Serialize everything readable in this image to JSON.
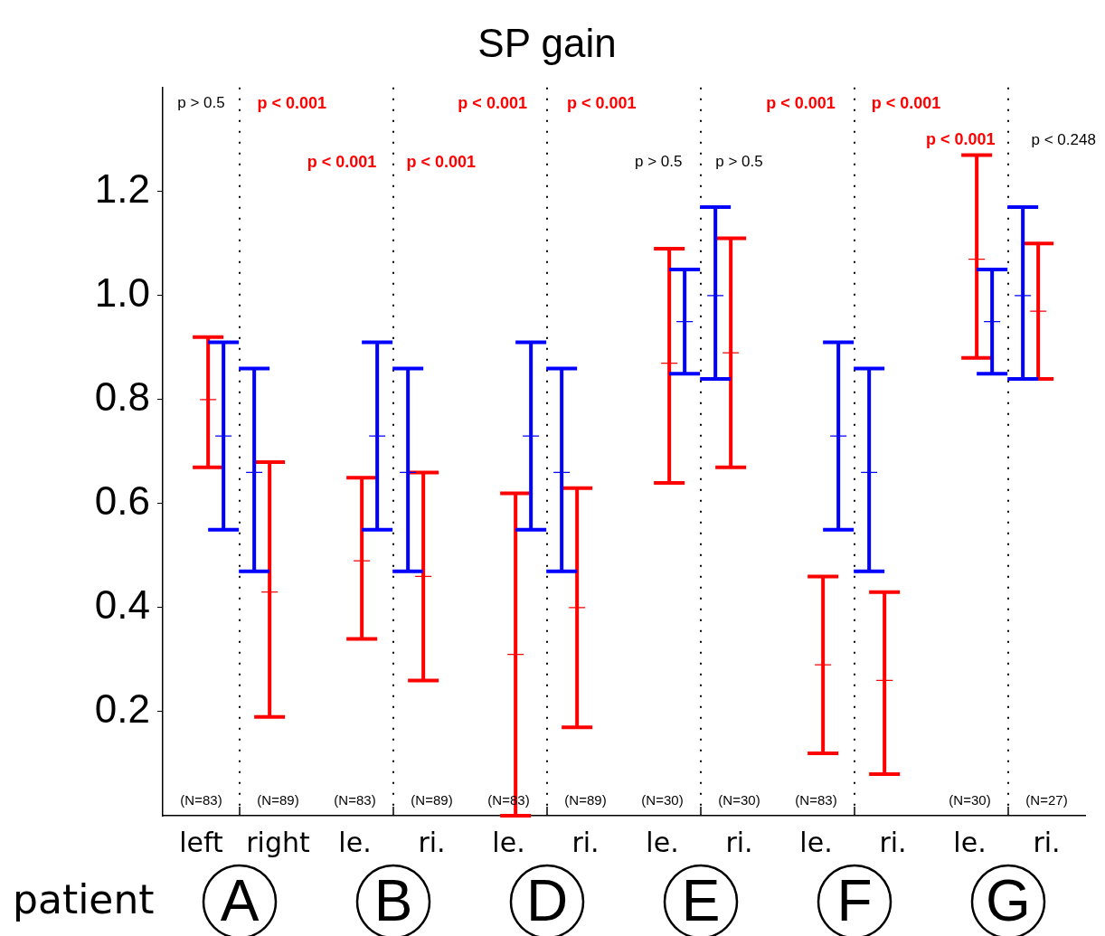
{
  "chart_data": {
    "type": "scatter",
    "title": "SP gain",
    "xlabel": "patient",
    "categories": [
      "left",
      "right",
      "le.",
      "ri.",
      "le.",
      "ri.",
      "le.",
      "ri.",
      "le.",
      "ri.",
      "le.",
      "ri."
    ],
    "series": [
      {
        "color": "#ff0000",
        "values": [
          0.8,
          0.43,
          0.49,
          0.46,
          0.31,
          0.4,
          0.87,
          0.89,
          0.29,
          0.26,
          1.07,
          0.97
        ],
        "errors": [
          [
            0.67,
            0.92
          ],
          [
            0.19,
            0.68
          ],
          [
            0.34,
            0.65
          ],
          [
            0.26,
            0.66
          ],
          [
            0.0,
            0.62
          ],
          [
            0.17,
            0.63
          ],
          [
            0.64,
            1.09
          ],
          [
            0.67,
            1.11
          ],
          [
            0.12,
            0.46
          ],
          [
            0.08,
            0.43
          ],
          [
            0.88,
            1.27
          ],
          [
            0.84,
            1.1
          ]
        ]
      },
      {
        "color": "#0000ff",
        "values": [
          0.73,
          0.66,
          0.73,
          0.66,
          0.73,
          0.66,
          0.95,
          1.0,
          0.73,
          0.66,
          0.95,
          1.0
        ],
        "errors": [
          [
            0.55,
            0.91
          ],
          [
            0.47,
            0.86
          ],
          [
            0.55,
            0.91
          ],
          [
            0.47,
            0.86
          ],
          [
            0.55,
            0.91
          ],
          [
            0.47,
            0.86
          ],
          [
            0.85,
            1.05
          ],
          [
            0.84,
            1.17
          ],
          [
            0.55,
            0.91
          ],
          [
            0.47,
            0.86
          ],
          [
            0.85,
            1.05
          ],
          [
            0.84,
            1.17
          ]
        ]
      }
    ],
    "ylim": [
      0,
      1.4
    ],
    "yticks": [
      0.2,
      0.4,
      0.6,
      0.8,
      {
        "value": 1,
        "label": "1.0"
      },
      1.2
    ],
    "grid": "x",
    "legend": false,
    "marker": "cross",
    "annotations": [
      "p > 0.5",
      "p < 0.001",
      "p < 0.001",
      "p < 0.001",
      "p < 0.001",
      "p < 0.001",
      "p > 0.5",
      "p > 0.5",
      "p < 0.001",
      "p < 0.001",
      "p < 0.001",
      "p < 0.248",
      "(N=83)",
      "(N=89)",
      "(N=83)",
      "(N=89)",
      "(N=83)",
      "(N=89)",
      "(N=30)",
      "(N=30)",
      "(N=83)",
      "(N=30)",
      "(N=27)",
      "A",
      "B",
      "D",
      "E",
      "F",
      "G"
    ]
  }
}
